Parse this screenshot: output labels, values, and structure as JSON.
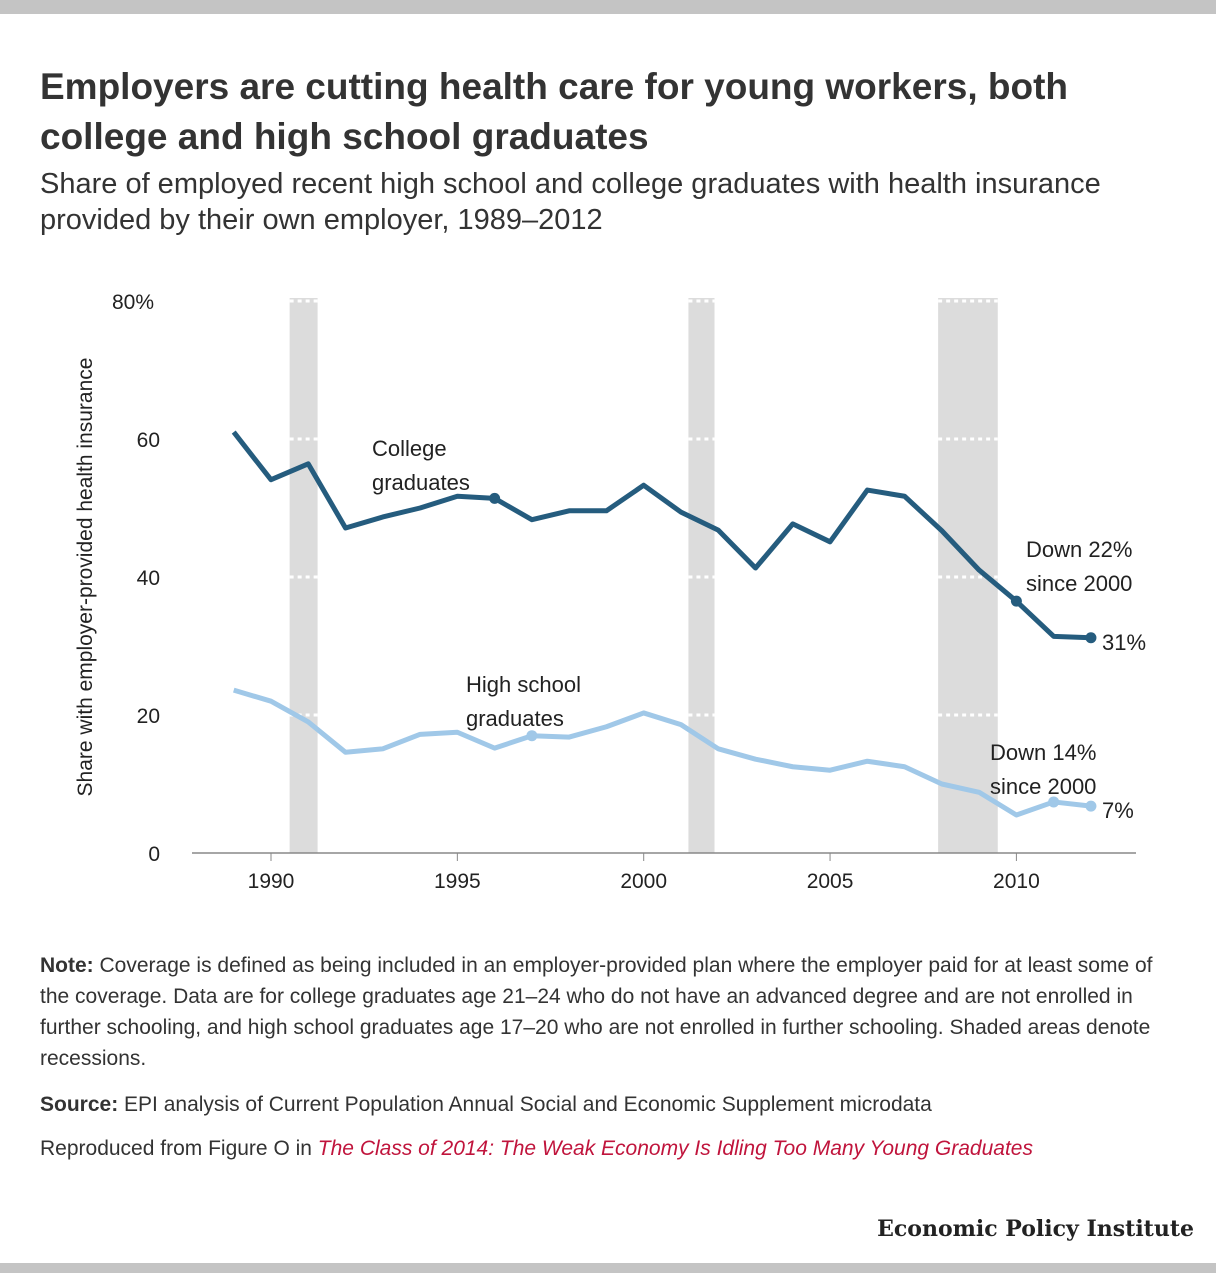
{
  "title": "Employers are cutting health care for young workers, both college and high school graduates",
  "subtitle": "Share of employed recent high school and college graduates with health insurance provided by their own employer, 1989–2012",
  "chart_data": {
    "type": "line",
    "ylabel": "Share with employer-provided health insurance",
    "xlabel": "",
    "ylim": [
      0,
      80
    ],
    "xlim": [
      1988,
      2013
    ],
    "yticks": [
      {
        "v": 0,
        "label": "0"
      },
      {
        "v": 20,
        "label": "20"
      },
      {
        "v": 40,
        "label": "40"
      },
      {
        "v": 60,
        "label": "60"
      },
      {
        "v": 80,
        "label": "80%"
      }
    ],
    "xticks": [
      {
        "v": 1990,
        "label": "1990"
      },
      {
        "v": 1995,
        "label": "1995"
      },
      {
        "v": 2000,
        "label": "2000"
      },
      {
        "v": 2005,
        "label": "2005"
      },
      {
        "v": 2010,
        "label": "2010"
      }
    ],
    "recessions": [
      [
        1990.5,
        1991.25
      ],
      [
        2001.2,
        2001.9
      ],
      [
        2007.9,
        2009.5
      ]
    ],
    "x": [
      1989,
      1990,
      1991,
      1992,
      1993,
      1994,
      1995,
      1996,
      1997,
      1998,
      1999,
      2000,
      2001,
      2002,
      2003,
      2004,
      2005,
      2006,
      2007,
      2008,
      2009,
      2010,
      2011,
      2012
    ],
    "series": [
      {
        "name": "College graduates",
        "label_lines": [
          "College",
          "graduates"
        ],
        "color": "#255c7e",
        "marker_years": [
          1996,
          2010,
          2012
        ],
        "values": [
          61.0,
          54.1,
          56.4,
          47.1,
          48.7,
          50.0,
          51.7,
          51.4,
          48.3,
          49.6,
          49.6,
          53.3,
          49.4,
          46.8,
          41.3,
          47.7,
          45.1,
          52.6,
          51.7,
          46.7,
          41.0,
          36.5,
          31.4,
          31.2
        ],
        "annotation": [
          "Down 22%",
          "since 2000"
        ],
        "end_label": "31%"
      },
      {
        "name": "High school graduates",
        "label_lines": [
          "High school",
          "graduates"
        ],
        "color": "#a0c8e8",
        "marker_years": [
          1997,
          2011,
          2012
        ],
        "values": [
          23.6,
          22.0,
          19.0,
          14.6,
          15.1,
          17.2,
          17.5,
          15.2,
          17.0,
          16.8,
          18.3,
          20.3,
          18.6,
          15.1,
          13.6,
          12.5,
          12.0,
          13.3,
          12.5,
          10.0,
          8.8,
          5.5,
          7.4,
          6.8
        ],
        "annotation": [
          "Down 14%",
          "since 2000"
        ],
        "end_label": "7%"
      }
    ]
  },
  "note_label": "Note:",
  "note": "Coverage is defined as being included in an employer-provided plan where the employer paid for at least some of the coverage. Data are for college graduates age 21–24 who do not have an advanced degree and are not enrolled in further schooling, and high school graduates age 17–20 who are not enrolled in further schooling. Shaded areas denote recessions.",
  "source_label": "Source:",
  "source": "EPI analysis of Current Population Annual Social and Economic Supplement microdata",
  "reproduced_prefix": "Reproduced from Figure O in ",
  "reproduced_link": "The Class of 2014: The Weak Economy Is Idling Too Many Young Graduates",
  "logo": "Economic Policy Institute"
}
